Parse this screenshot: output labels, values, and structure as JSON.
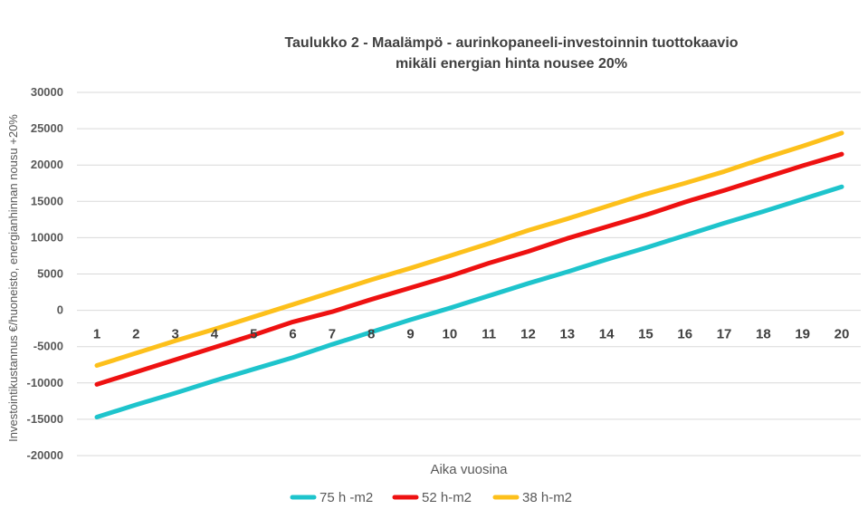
{
  "chart_data": {
    "type": "line",
    "title": "Taulukko 2 - Maalämpö - aurinkopaneeli-investoinnin tuottokaavio",
    "subtitle": "mikäli energian hinta nousee 20%",
    "xlabel": "Aika vuosina",
    "ylabel": "Investointikustannus €/huoneisto, energianhinnan nousu +20%",
    "x": [
      1,
      2,
      3,
      4,
      5,
      6,
      7,
      8,
      9,
      10,
      11,
      12,
      13,
      14,
      15,
      16,
      17,
      18,
      19,
      20
    ],
    "ylim": [
      -20000,
      30000
    ],
    "yticks": [
      30000,
      25000,
      20000,
      15000,
      10000,
      5000,
      0,
      -5000,
      -10000,
      -15000,
      -20000
    ],
    "grid": true,
    "legend_position": "bottom",
    "series": [
      {
        "name": "75 h -m2",
        "color": "#1EC4CC",
        "values": [
          -14700,
          -13000,
          -11400,
          -9700,
          -8100,
          -6500,
          -4700,
          -3000,
          -1300,
          300,
          2000,
          3700,
          5300,
          7000,
          8600,
          10300,
          12000,
          13600,
          15300,
          17000
        ]
      },
      {
        "name": "52 h-m2",
        "color": "#EE1111",
        "values": [
          -10200,
          -8500,
          -6800,
          -5100,
          -3400,
          -1600,
          -200,
          1500,
          3100,
          4700,
          6500,
          8100,
          9900,
          11500,
          13100,
          14900,
          16500,
          18200,
          19900,
          21500
        ]
      },
      {
        "name": "38 h-m2",
        "color": "#FDC01B",
        "values": [
          -7600,
          -5900,
          -4200,
          -2600,
          -900,
          800,
          2500,
          4200,
          5800,
          7500,
          9200,
          11000,
          12600,
          14300,
          16000,
          17500,
          19100,
          20900,
          22600,
          24400
        ]
      }
    ]
  }
}
